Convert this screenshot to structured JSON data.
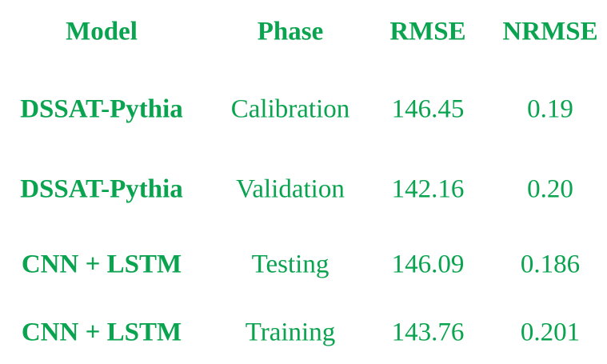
{
  "table": {
    "headers": {
      "model": "Model",
      "phase": "Phase",
      "rmse": "RMSE",
      "nrmse": "NRMSE"
    },
    "rows": [
      {
        "model": "DSSAT-Pythia",
        "phase": "Calibration",
        "rmse": "146.45",
        "nrmse": "0.19"
      },
      {
        "model": "DSSAT-Pythia",
        "phase": "Validation",
        "rmse": "142.16",
        "nrmse": "0.20"
      },
      {
        "model": "CNN + LSTM",
        "phase": "Testing",
        "rmse": "146.09",
        "nrmse": "0.186"
      },
      {
        "model": "CNN + LSTM",
        "phase": "Training",
        "rmse": "143.76",
        "nrmse": "0.201"
      }
    ]
  },
  "colors": {
    "text": "#0aa34f",
    "background": "#ffffff"
  }
}
